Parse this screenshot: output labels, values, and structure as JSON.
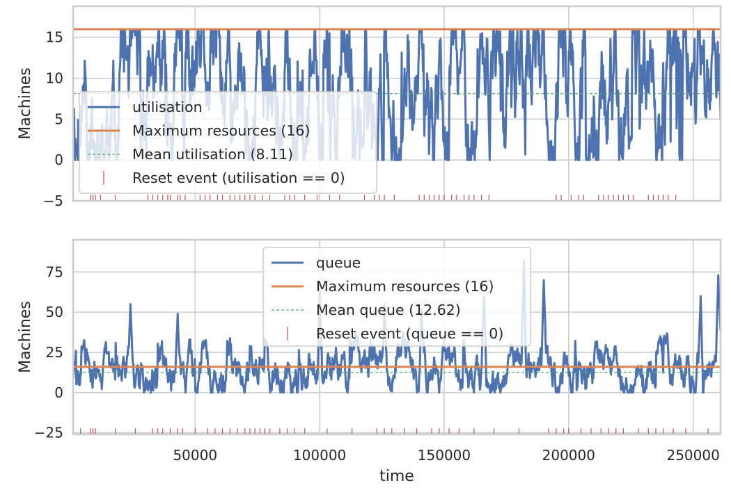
{
  "chart_data": [
    {
      "type": "line",
      "ylabel": "Machines",
      "xlabel": "",
      "xlim": [
        1000,
        261000
      ],
      "ylim": [
        -5,
        18.8
      ],
      "yticks": [
        -5,
        0,
        5,
        10,
        15
      ],
      "ytick_labels": [
        "−5",
        "0",
        "5",
        "10",
        "15"
      ],
      "xticks": [
        50000,
        100000,
        150000,
        200000,
        250000
      ],
      "xtick_labels": [],
      "grid": true,
      "legend_position": "lower-left",
      "series": [
        {
          "name": "utilisation",
          "kind": "line",
          "color": "#4c72b0",
          "mean": 8.11,
          "min": 0,
          "max": 16,
          "samples": 1400,
          "seed": 11,
          "data_note": "dense fluctuating time series"
        },
        {
          "name": "Maximum resources (16)",
          "kind": "hline",
          "color": "#dd8452",
          "value": 16
        },
        {
          "name": "Mean utilisation (8.11)",
          "kind": "hline-dashed",
          "color": "#55a868",
          "value": 8.11
        },
        {
          "name": "Reset event (utilisation == 0)",
          "kind": "event-ticks",
          "color": "#c44e52",
          "y": -4.6,
          "x": [
            8000,
            9000,
            10000,
            12000,
            18000,
            31000,
            33000,
            35000,
            37000,
            39000,
            40000,
            43000,
            44000,
            46000,
            52000,
            54000,
            56000,
            59000,
            61000,
            64000,
            66000,
            68000,
            70000,
            72000,
            74000,
            77000,
            80000,
            86000,
            88000,
            90000,
            94000,
            99000,
            104000,
            108000,
            118000,
            122000,
            124000,
            126000,
            130000,
            140000,
            142000,
            144000,
            146000,
            148000,
            150000,
            153000,
            155000,
            158000,
            160000,
            162000,
            165000,
            168000,
            195000,
            197000,
            201000,
            204000,
            206000,
            212000,
            214000,
            216000,
            218000,
            220000,
            222000,
            224000,
            226000,
            232000,
            234000,
            236000,
            238000,
            240000,
            243000
          ]
        }
      ]
    },
    {
      "type": "line",
      "ylabel": "Machines",
      "xlabel": "time",
      "xlim": [
        1000,
        261000
      ],
      "ylim": [
        -26,
        95
      ],
      "yticks": [
        -25,
        0,
        25,
        50,
        75
      ],
      "ytick_labels": [
        "−25",
        "0",
        "25",
        "50",
        "75"
      ],
      "xticks": [
        50000,
        100000,
        150000,
        200000,
        250000
      ],
      "xtick_labels": [
        "50000",
        "100000",
        "150000",
        "200000",
        "250000"
      ],
      "grid": true,
      "legend_position": "upper-center",
      "series": [
        {
          "name": "queue",
          "kind": "line",
          "color": "#4c72b0",
          "mean": 12.62,
          "min": 0,
          "max": 82,
          "samples": 1400,
          "seed": 29,
          "peaks": [
            [
              24000,
              55
            ],
            [
              43000,
              49
            ],
            [
              100000,
              68
            ],
            [
              126000,
              55
            ],
            [
              141000,
              52
            ],
            [
              166000,
              60
            ],
            [
              182000,
              82
            ],
            [
              190000,
              70
            ],
            [
              253000,
              60
            ],
            [
              260000,
              73
            ]
          ],
          "data_note": "dense fluctuating time series"
        },
        {
          "name": "Maximum resources (16)",
          "kind": "hline",
          "color": "#dd8452",
          "value": 16
        },
        {
          "name": "Mean queue (12.62)",
          "kind": "hline-dashed",
          "color": "#55a868",
          "value": 12.62
        },
        {
          "name": "Reset event (queue == 0)",
          "kind": "event-ticks",
          "color": "#c44e52",
          "y": -24,
          "x": [
            4000,
            8000,
            9000,
            10000,
            18000,
            26000,
            33000,
            35000,
            37000,
            40000,
            43000,
            45000,
            50000,
            55000,
            58000,
            61000,
            64000,
            67000,
            70000,
            72000,
            74000,
            76000,
            78000,
            80000,
            84000,
            87000,
            90000,
            94000,
            103000,
            113000,
            123000,
            126000,
            129000,
            134000,
            139000,
            145000,
            148000,
            152000,
            156000,
            162000,
            170000,
            180000,
            192000,
            195000,
            198000,
            200000,
            205000,
            209000,
            213000,
            216000,
            219000,
            222000,
            228000,
            232000,
            235000,
            238000,
            242000,
            247000,
            256000
          ]
        }
      ]
    }
  ]
}
